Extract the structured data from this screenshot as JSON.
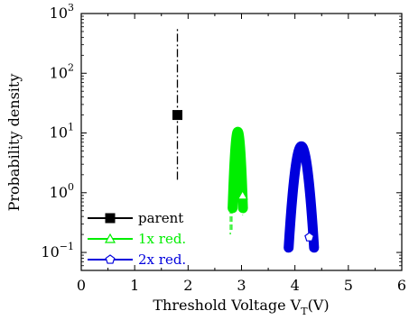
{
  "chart_data": {
    "type": "scatter",
    "xlabel": "Threshold Voltage V",
    "xlabel_subscript": "T",
    "xlabel_suffix": "(V)",
    "ylabel": "Probability density",
    "xlim": [
      0,
      6
    ],
    "ylim": [
      0.05,
      1000
    ],
    "yscale": "log",
    "grid": false,
    "legend_position": "bottom-left",
    "x_ticks": [
      "0",
      "1",
      "2",
      "3",
      "4",
      "5",
      "6"
    ],
    "y_ticks": [
      {
        "value": 0.1,
        "base": "10",
        "exp": "−1"
      },
      {
        "value": 1,
        "base": "10",
        "exp": "0"
      },
      {
        "value": 10,
        "base": "10",
        "exp": "1"
      },
      {
        "value": 100,
        "base": "10",
        "exp": "2"
      },
      {
        "value": 1000,
        "base": "10",
        "exp": "3"
      }
    ],
    "series": [
      {
        "name": "parent",
        "color": "#000000",
        "marker": "square",
        "dashed_segment": {
          "x": 1.8,
          "y_from": 1.65,
          "y_to": 560
        },
        "points": [
          {
            "x": 1.8,
            "y": 20
          }
        ]
      },
      {
        "name": "1x red.",
        "color": "#00ee00",
        "marker": "triangle",
        "curve": {
          "mu": 2.93,
          "sigma": 0.04,
          "peak": 10.5,
          "y_min": 0.55
        },
        "tail_segments": [
          {
            "x": 2.79,
            "y_from": 0.55,
            "y_to": 0.2
          },
          {
            "x": 2.82,
            "y_from": 0.55,
            "y_to": 0.22
          },
          {
            "x": 3.02,
            "y_from": 0.8,
            "y_to": 0.42
          }
        ],
        "points": [
          {
            "x": 3.02,
            "y": 0.9
          }
        ]
      },
      {
        "name": "2x red.",
        "color": "#0000dd",
        "marker": "pentagon",
        "curve": {
          "mu": 4.12,
          "sigma": 0.085,
          "peak": 6.0,
          "y_min": 0.12
        },
        "points": [
          {
            "x": 4.27,
            "y": 0.18
          }
        ]
      }
    ]
  }
}
